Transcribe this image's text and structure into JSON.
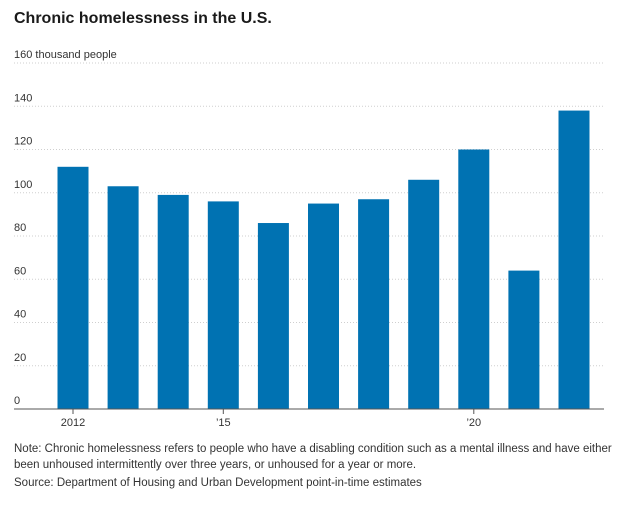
{
  "chart_data": {
    "type": "bar",
    "title": "Chronic homelessness in the U.S.",
    "ylabel_top": "160 thousand people",
    "x": [
      2012,
      2013,
      2014,
      2015,
      2016,
      2017,
      2018,
      2019,
      2020,
      2021,
      2022
    ],
    "x_tick_labels": [
      {
        "x": 2012,
        "label": "2012"
      },
      {
        "x": 2015,
        "label": "’15"
      },
      {
        "x": 2020,
        "label": "’20"
      }
    ],
    "values": [
      112,
      103,
      99,
      96,
      86,
      95,
      97,
      106,
      120,
      64,
      138
    ],
    "ylim": [
      0,
      160
    ],
    "y_ticks": [
      0,
      20,
      40,
      60,
      80,
      100,
      120,
      140,
      160
    ],
    "grid": true,
    "bar_color": "#0072b2"
  },
  "note": "Note: Chronic homelessness refers to people who have a disabling condition such as a mental illness and have either been unhoused intermittently over three years, or unhoused for a year or more.",
  "source": "Source: Department of Housing and Urban Development point-in-time estimates"
}
